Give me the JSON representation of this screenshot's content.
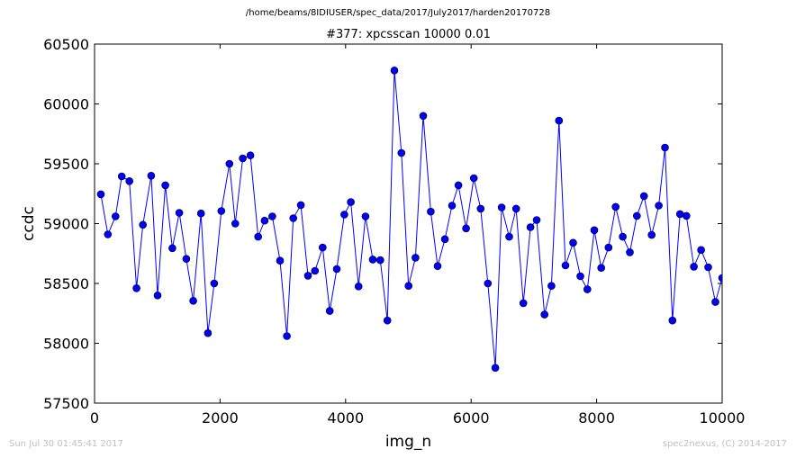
{
  "chart_data": {
    "type": "line",
    "suptitle": "/home/beams/8IDIUSER/spec_data/2017/July2017/harden20170728",
    "title": "#377: xpcsscan 10000 0.01",
    "xlabel": "img_n",
    "ylabel": "ccdc",
    "xlim": [
      0,
      10000
    ],
    "ylim": [
      57500,
      60500
    ],
    "xticks": [
      0,
      2000,
      4000,
      6000,
      8000,
      10000
    ],
    "yticks": [
      57500,
      58000,
      58500,
      59000,
      59500,
      60000,
      60500
    ],
    "xtick_labels": [
      "0",
      "2000",
      "4000",
      "6000",
      "8000",
      "10000"
    ],
    "ytick_labels": [
      "57500",
      "58000",
      "58500",
      "59000",
      "59500",
      "60000",
      "60500"
    ],
    "grid": false,
    "legend": "none",
    "series": [
      {
        "color": "#0000ff",
        "marker": "circle",
        "x": [
          101,
          213,
          335,
          434,
          555,
          668,
          770,
          903,
          1005,
          1128,
          1239,
          1350,
          1462,
          1573,
          1696,
          1807,
          1907,
          2020,
          2149,
          2242,
          2362,
          2484,
          2607,
          2710,
          2832,
          2955,
          3065,
          3166,
          3287,
          3401,
          3512,
          3634,
          3748,
          3860,
          3980,
          4083,
          4206,
          4317,
          4434,
          4552,
          4666,
          4778,
          4890,
          5003,
          5113,
          5237,
          5357,
          5467,
          5582,
          5696,
          5797,
          5920,
          6043,
          6152,
          6267,
          6386,
          6487,
          6607,
          6718,
          6832,
          6945,
          7045,
          7170,
          7280,
          7400,
          7504,
          7625,
          7740,
          7852,
          7962,
          8073,
          8189,
          8303,
          8416,
          8529,
          8642,
          8755,
          8876,
          8990,
          9089,
          9208,
          9329,
          9430,
          9550,
          9664,
          9777,
          9893,
          10000
        ],
        "y": [
          59245,
          58910,
          59060,
          59395,
          59355,
          58460,
          58990,
          59400,
          58400,
          59320,
          58795,
          59090,
          58705,
          58355,
          59085,
          58085,
          58500,
          59105,
          59500,
          59000,
          59545,
          59570,
          58890,
          59025,
          59060,
          58690,
          58060,
          59045,
          59155,
          58565,
          58605,
          58800,
          58270,
          58620,
          59075,
          59180,
          58475,
          59060,
          58700,
          58695,
          58190,
          60280,
          59590,
          58480,
          58715,
          59900,
          59100,
          58645,
          58870,
          59150,
          59320,
          58960,
          59380,
          59125,
          58500,
          57795,
          59135,
          58890,
          59125,
          58335,
          58970,
          59030,
          58240,
          58480,
          59860,
          58650,
          58840,
          58560,
          58450,
          58945,
          58630,
          58800,
          59140,
          58890,
          58760,
          59065,
          59230,
          58905,
          59150,
          59635,
          58190,
          59080,
          59065,
          58640,
          58780,
          58635,
          58345,
          58545
        ]
      }
    ]
  },
  "footer": {
    "timestamp": "Sun Jul 30 01:45:41 2017",
    "credit": "spec2nexus, (C) 2014-2017"
  }
}
